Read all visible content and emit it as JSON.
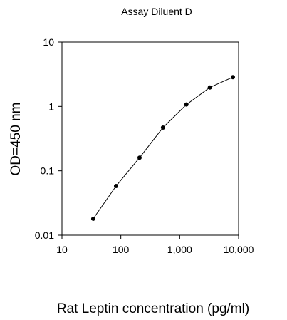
{
  "chart_data": {
    "type": "scatter",
    "title": "Assay Diluent D",
    "xlabel": "Rat Leptin concentration (pg/ml)",
    "ylabel": "OD=450 nm",
    "xscale": "log",
    "yscale": "log",
    "xlim": [
      10,
      10000
    ],
    "ylim": [
      0.01,
      10
    ],
    "grid": false,
    "xticks": [
      {
        "value": 10,
        "label": "10"
      },
      {
        "value": 100,
        "label": "100"
      },
      {
        "value": 1000,
        "label": "1,000"
      },
      {
        "value": 10000,
        "label": "10,000"
      }
    ],
    "yticks": [
      {
        "value": 0.01,
        "label": "0.01"
      },
      {
        "value": 0.1,
        "label": "0.1"
      },
      {
        "value": 1,
        "label": "1"
      },
      {
        "value": 10,
        "label": "10"
      }
    ],
    "series": [
      {
        "x": [
          34,
          83,
          208,
          520,
          1300,
          3250,
          8000
        ],
        "y": [
          0.018,
          0.058,
          0.16,
          0.47,
          1.07,
          1.97,
          2.85
        ]
      }
    ]
  }
}
